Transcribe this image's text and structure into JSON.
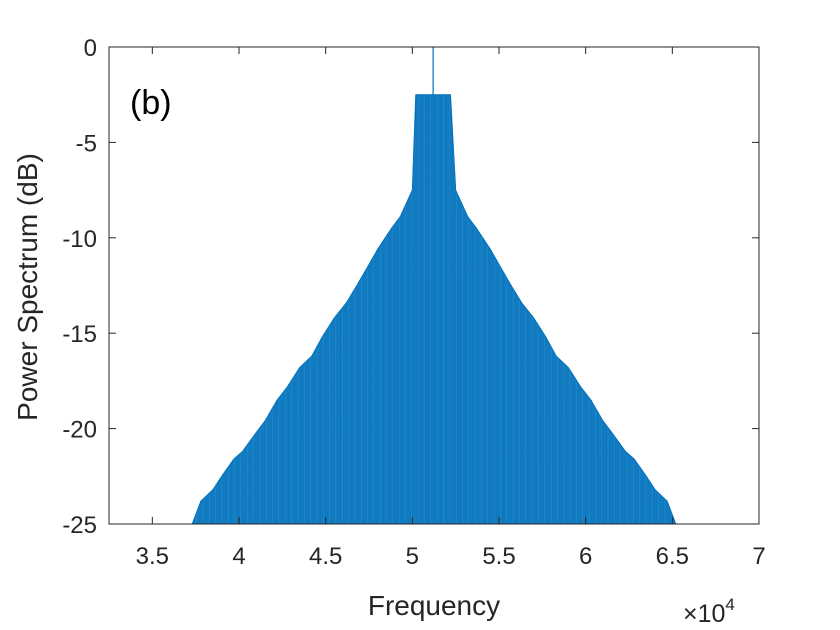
{
  "chart_data": {
    "type": "line",
    "title": "",
    "panel_label": "(b)",
    "xlabel": "Frequency",
    "ylabel": "Power Spectrum (dB)",
    "x_exponent_label": "×10",
    "x_exponent_power": "4",
    "xlim": [
      3.25,
      7.0
    ],
    "ylim": [
      -25,
      0
    ],
    "x_scale_factor": 10000,
    "xticks": [
      3.5,
      4,
      4.5,
      5,
      5.5,
      6,
      6.5,
      7
    ],
    "xtick_labels": [
      "3.5",
      "4",
      "4.5",
      "5",
      "5.5",
      "6",
      "6.5",
      "7"
    ],
    "yticks": [
      0,
      -5,
      -10,
      -15,
      -20,
      -25
    ],
    "ytick_labels": [
      "0",
      "-5",
      "-10",
      "-15",
      "-20",
      "-25"
    ],
    "grid": false,
    "series": [
      {
        "color": "#0072BD",
        "peak_x": 5.12,
        "peak_y": 0,
        "plateau": [
          5.02,
          5.22,
          -2.5
        ],
        "envelope": [
          [
            3.73,
            -25
          ],
          [
            3.78,
            -23.8
          ],
          [
            3.85,
            -23.2
          ],
          [
            3.9,
            -22.5
          ],
          [
            3.97,
            -21.6
          ],
          [
            4.02,
            -21.2
          ],
          [
            4.1,
            -20.2
          ],
          [
            4.15,
            -19.6
          ],
          [
            4.22,
            -18.5
          ],
          [
            4.28,
            -17.8
          ],
          [
            4.35,
            -16.8
          ],
          [
            4.42,
            -16.2
          ],
          [
            4.48,
            -15.2
          ],
          [
            4.55,
            -14.2
          ],
          [
            4.62,
            -13.4
          ],
          [
            4.68,
            -12.5
          ],
          [
            4.75,
            -11.4
          ],
          [
            4.8,
            -10.6
          ],
          [
            4.88,
            -9.5
          ],
          [
            4.93,
            -8.9
          ],
          [
            5.0,
            -7.5
          ],
          [
            5.02,
            -2.5
          ],
          [
            5.22,
            -2.5
          ],
          [
            5.25,
            -7.5
          ],
          [
            5.32,
            -8.9
          ],
          [
            5.37,
            -9.5
          ],
          [
            5.45,
            -10.6
          ],
          [
            5.5,
            -11.4
          ],
          [
            5.57,
            -12.5
          ],
          [
            5.63,
            -13.4
          ],
          [
            5.7,
            -14.2
          ],
          [
            5.77,
            -15.2
          ],
          [
            5.83,
            -16.2
          ],
          [
            5.9,
            -16.8
          ],
          [
            5.97,
            -17.8
          ],
          [
            6.03,
            -18.5
          ],
          [
            6.1,
            -19.6
          ],
          [
            6.15,
            -20.2
          ],
          [
            6.23,
            -21.2
          ],
          [
            6.28,
            -21.6
          ],
          [
            6.35,
            -22.5
          ],
          [
            6.4,
            -23.2
          ],
          [
            6.47,
            -23.8
          ],
          [
            6.52,
            -25
          ]
        ]
      }
    ]
  }
}
